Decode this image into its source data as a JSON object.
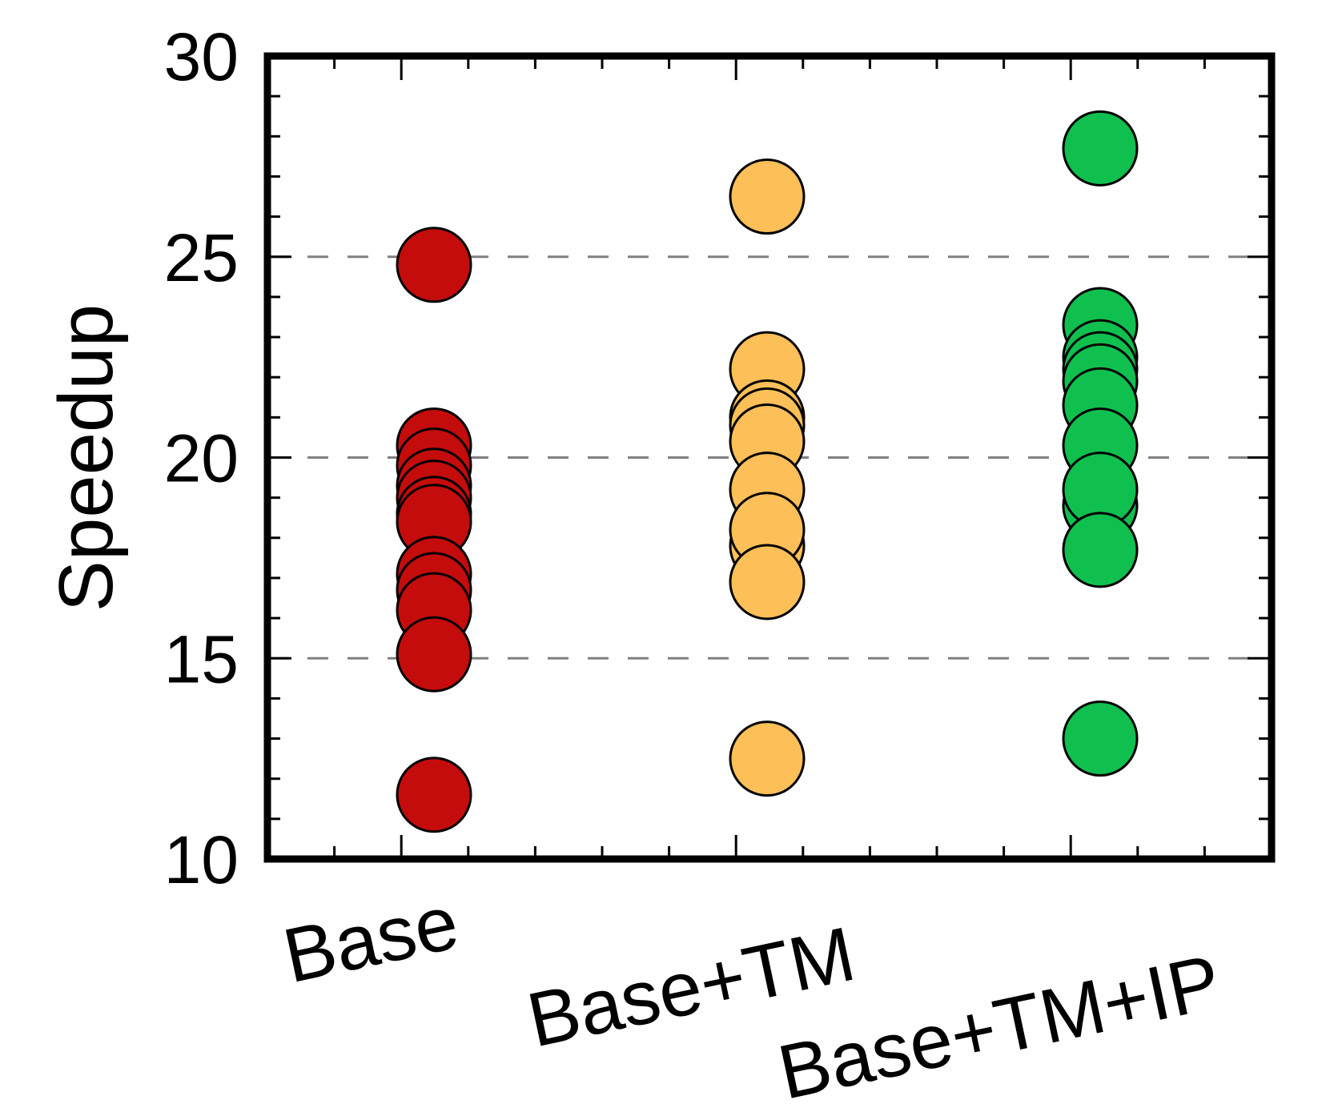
{
  "chart_data": {
    "type": "scatter",
    "ylabel": "Speedup",
    "ylim": [
      10,
      30
    ],
    "yticks": [
      10,
      15,
      20,
      25,
      30
    ],
    "grid": {
      "horizontal_dashed_at": [
        15,
        20,
        25
      ]
    },
    "categories": [
      "Base",
      "Base+TM",
      "Base+TM+IP"
    ],
    "series": [
      {
        "category": "Base",
        "color": "#c40c0c",
        "values": [
          24.8,
          20.3,
          19.8,
          19.3,
          19.0,
          18.6,
          18.4,
          17.1,
          16.7,
          16.2,
          15.1,
          11.6
        ]
      },
      {
        "category": "Base+TM",
        "color": "#fdbf58",
        "values": [
          26.5,
          22.2,
          21.0,
          20.8,
          20.4,
          19.2,
          17.8,
          18.2,
          16.9,
          12.5
        ]
      },
      {
        "category": "Base+TM+IP",
        "color": "#10c04f",
        "values": [
          27.7,
          23.3,
          22.5,
          22.2,
          21.9,
          21.3,
          20.3,
          18.8,
          19.2,
          17.7,
          13.0
        ]
      }
    ]
  }
}
